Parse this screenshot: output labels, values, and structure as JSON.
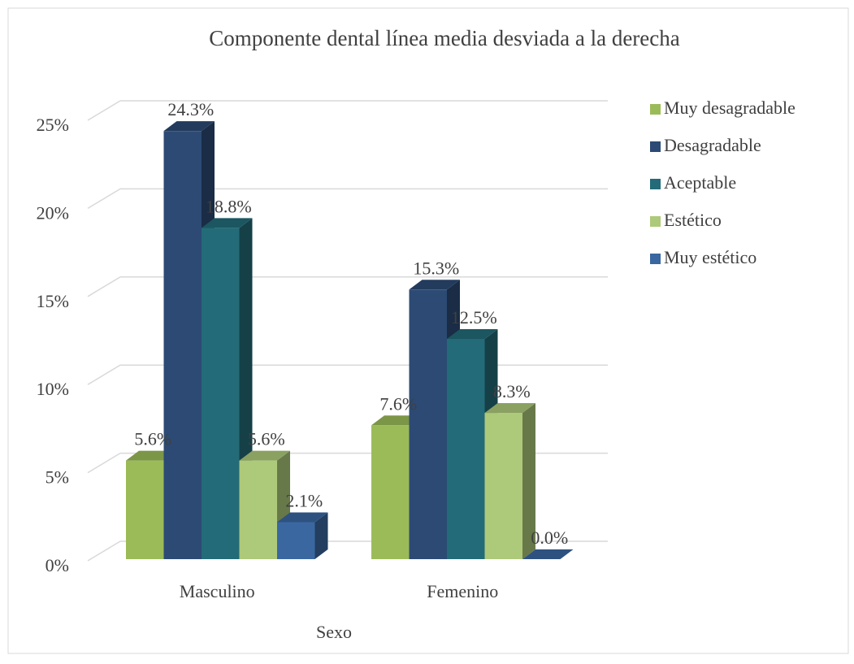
{
  "chart_data": {
    "type": "bar3d",
    "title": "Componente dental línea media desviada a la derecha",
    "x_label": "Sexo",
    "categories": [
      "Masculino",
      "Femenino"
    ],
    "series": [
      {
        "name": "Muy desagradable",
        "color": "#9bbb59",
        "values": [
          5.6,
          7.6
        ],
        "value_labels": [
          "5.6%",
          "7.6%"
        ]
      },
      {
        "name": "Desagradable",
        "color": "#2c4a74",
        "values": [
          24.3,
          15.3
        ],
        "value_labels": [
          "24.3%",
          "15.3%"
        ]
      },
      {
        "name": "Aceptable",
        "color": "#236b78",
        "values": [
          18.8,
          12.5
        ],
        "value_labels": [
          "18.8%",
          "12.5%"
        ]
      },
      {
        "name": "Estético",
        "color": "#adc97a",
        "values": [
          5.6,
          8.3
        ],
        "value_labels": [
          "5.6%",
          "8.3%"
        ]
      },
      {
        "name": "Muy estético",
        "color": "#3a67a0",
        "values": [
          2.1,
          0.0
        ],
        "value_labels": [
          "2.1%",
          "0.0%"
        ]
      }
    ],
    "ylim": [
      0,
      25
    ],
    "yticks": [
      {
        "value": 0,
        "label": "0%"
      },
      {
        "value": 5,
        "label": "5%"
      },
      {
        "value": 10,
        "label": "10%"
      },
      {
        "value": 15,
        "label": "15%"
      },
      {
        "value": 20,
        "label": "20%"
      },
      {
        "value": 25,
        "label": "25%"
      }
    ],
    "grid": true,
    "legend": "right"
  }
}
